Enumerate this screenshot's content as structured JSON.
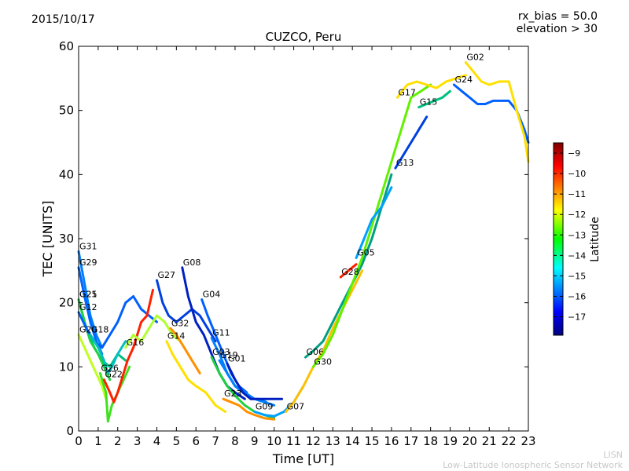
{
  "header": {
    "date": "2015/10/17",
    "bias": "rx_bias = 50.0",
    "elevation": "elevation > 30"
  },
  "footer": {
    "line1": "LISN",
    "line2": "Low-Latitude Ionospheric Sensor Network"
  },
  "chart_data": {
    "type": "scatter",
    "title": "CUZCO, Peru",
    "xlabel": "Time [UT]",
    "ylabel": "TEC [UNITS]",
    "xlim": [
      0,
      23
    ],
    "ylim": [
      0,
      60
    ],
    "xticks": [
      0,
      1,
      2,
      3,
      4,
      5,
      6,
      7,
      8,
      9,
      10,
      11,
      12,
      13,
      14,
      15,
      16,
      17,
      18,
      19,
      20,
      21,
      22,
      23
    ],
    "yticks": [
      0,
      10,
      20,
      30,
      40,
      50,
      60
    ],
    "grid": false,
    "colorbar": {
      "label": "Latitude",
      "range": [
        -17.9,
        -8.5
      ],
      "ticks": [
        -17,
        -16,
        -15,
        -14,
        -13,
        -12,
        -11,
        -10,
        -9
      ],
      "colormap": "jet"
    },
    "series": [
      {
        "name": "G31",
        "color": "#0080ff",
        "points": [
          [
            0.0,
            28
          ],
          [
            0.3,
            23
          ],
          [
            0.6,
            18
          ],
          [
            0.9,
            15
          ],
          [
            1.2,
            13
          ]
        ]
      },
      {
        "name": "G29",
        "color": "#0066ff",
        "points": [
          [
            0.0,
            25.5
          ],
          [
            0.3,
            21
          ],
          [
            0.6,
            17
          ],
          [
            0.9,
            14
          ],
          [
            1.2,
            12
          ]
        ]
      },
      {
        "name": "G25",
        "color": "#00c080",
        "points": [
          [
            0.0,
            20.5
          ],
          [
            0.4,
            16
          ],
          [
            0.8,
            13
          ],
          [
            1.2,
            11
          ],
          [
            1.6,
            10
          ],
          [
            2.0,
            12
          ],
          [
            2.4,
            11
          ]
        ]
      },
      {
        "name": "G21",
        "color": "#20d040",
        "points": [
          [
            0.0,
            20.5
          ],
          [
            0.3,
            17
          ],
          [
            0.6,
            14
          ],
          [
            1.0,
            12
          ],
          [
            1.3,
            10
          ],
          [
            1.6,
            8
          ]
        ]
      },
      {
        "name": "G12",
        "color": "#0060ff",
        "points": [
          [
            0.0,
            18.5
          ],
          [
            0.4,
            16
          ],
          [
            0.8,
            14
          ],
          [
            1.2,
            13
          ],
          [
            1.6,
            15
          ],
          [
            2.0,
            17
          ],
          [
            2.4,
            20
          ],
          [
            2.8,
            21
          ],
          [
            3.2,
            19
          ],
          [
            3.6,
            18
          ],
          [
            4.0,
            17
          ]
        ]
      },
      {
        "name": "G20",
        "color": "#c0ff20",
        "points": [
          [
            0.0,
            15
          ],
          [
            0.3,
            13
          ],
          [
            0.6,
            11
          ],
          [
            0.9,
            9
          ],
          [
            1.2,
            7
          ],
          [
            1.4,
            5
          ]
        ]
      },
      {
        "name": "G18",
        "color": "#00c0c0",
        "points": [
          [
            0.6,
            15
          ],
          [
            1.0,
            13
          ],
          [
            1.3,
            11
          ],
          [
            1.5,
            9
          ],
          [
            1.7,
            10
          ],
          [
            2.0,
            12
          ],
          [
            2.4,
            14
          ]
        ]
      },
      {
        "name": "G26",
        "color": "#40e020",
        "points": [
          [
            1.1,
            9
          ],
          [
            1.4,
            6
          ],
          [
            1.5,
            1.5
          ],
          [
            1.7,
            4
          ],
          [
            2.0,
            6
          ],
          [
            2.3,
            8
          ],
          [
            2.6,
            10
          ]
        ]
      },
      {
        "name": "G22",
        "color": "#ff2000",
        "points": [
          [
            1.3,
            8
          ],
          [
            1.6,
            6
          ],
          [
            1.8,
            4.5
          ],
          [
            2.0,
            6
          ],
          [
            2.2,
            8
          ],
          [
            2.5,
            11
          ],
          [
            2.8,
            13
          ],
          [
            3.2,
            17
          ],
          [
            3.5,
            18
          ],
          [
            3.8,
            22
          ]
        ]
      },
      {
        "name": "G16",
        "color": "#b0ff30",
        "points": [
          [
            2.4,
            13
          ],
          [
            2.8,
            15
          ],
          [
            3.2,
            14
          ],
          [
            3.6,
            16
          ],
          [
            4.0,
            18
          ],
          [
            4.4,
            17
          ],
          [
            4.8,
            15
          ],
          [
            5.2,
            14
          ]
        ]
      },
      {
        "name": "G27",
        "color": "#0040e0",
        "points": [
          [
            4.0,
            23.5
          ],
          [
            4.3,
            20
          ],
          [
            4.6,
            18
          ],
          [
            5.0,
            17
          ],
          [
            5.4,
            18
          ],
          [
            5.8,
            19
          ],
          [
            6.2,
            18
          ],
          [
            6.6,
            16
          ],
          [
            7.0,
            14
          ]
        ]
      },
      {
        "name": "G08",
        "color": "#0020c0",
        "points": [
          [
            5.3,
            25.5
          ],
          [
            5.6,
            21
          ],
          [
            6.0,
            17
          ],
          [
            6.4,
            15
          ],
          [
            6.8,
            12
          ],
          [
            7.2,
            9
          ],
          [
            7.6,
            7
          ],
          [
            8.0,
            6
          ],
          [
            8.5,
            5
          ]
        ]
      },
      {
        "name": "G32",
        "color": "#ff9000",
        "points": [
          [
            4.7,
            16
          ],
          [
            5.0,
            15
          ],
          [
            5.4,
            13
          ],
          [
            5.8,
            11
          ],
          [
            6.2,
            9
          ]
        ]
      },
      {
        "name": "G14",
        "color": "#ffe000",
        "points": [
          [
            4.5,
            14
          ],
          [
            4.8,
            12
          ],
          [
            5.2,
            10
          ],
          [
            5.6,
            8
          ],
          [
            6.0,
            7
          ],
          [
            6.5,
            6
          ],
          [
            7.0,
            4
          ],
          [
            7.5,
            3
          ]
        ]
      },
      {
        "name": "G04",
        "color": "#0060ff",
        "points": [
          [
            6.3,
            20.5
          ],
          [
            6.6,
            18
          ],
          [
            7.0,
            15
          ],
          [
            7.4,
            12
          ],
          [
            7.8,
            9
          ],
          [
            8.2,
            7
          ],
          [
            8.6,
            6
          ]
        ]
      },
      {
        "name": "G11",
        "color": "#0080ff",
        "points": [
          [
            6.8,
            14.5
          ],
          [
            7.2,
            12
          ],
          [
            7.6,
            9
          ],
          [
            8.0,
            7
          ],
          [
            8.5,
            6
          ],
          [
            9.0,
            5
          ],
          [
            9.5,
            4.5
          ],
          [
            10.0,
            4
          ]
        ]
      },
      {
        "name": "G03",
        "color": "#20d040",
        "points": [
          [
            6.8,
            11.5
          ],
          [
            7.2,
            9
          ],
          [
            7.6,
            7
          ],
          [
            8.0,
            5.5
          ],
          [
            8.5,
            4
          ],
          [
            9.0,
            3
          ],
          [
            9.5,
            2.5
          ],
          [
            10.0,
            2
          ]
        ]
      },
      {
        "name": "G19",
        "color": "#0080ff",
        "points": [
          [
            7.2,
            11
          ],
          [
            7.6,
            9
          ],
          [
            8.0,
            7
          ],
          [
            8.4,
            6
          ],
          [
            8.8,
            5
          ],
          [
            9.2,
            5
          ],
          [
            9.6,
            4.5
          ]
        ]
      },
      {
        "name": "G01",
        "color": "#0020c0",
        "points": [
          [
            7.6,
            10.5
          ],
          [
            8.0,
            8
          ],
          [
            8.4,
            6
          ],
          [
            8.8,
            5
          ],
          [
            9.2,
            5
          ],
          [
            9.6,
            5
          ],
          [
            10.0,
            5
          ],
          [
            10.4,
            5
          ]
        ]
      },
      {
        "name": "G23",
        "color": "#ff9000",
        "points": [
          [
            7.4,
            5
          ],
          [
            7.8,
            4.5
          ],
          [
            8.2,
            4
          ],
          [
            8.6,
            3
          ],
          [
            9.0,
            2.5
          ],
          [
            9.5,
            2
          ],
          [
            10.0,
            1.8
          ]
        ]
      },
      {
        "name": "G09",
        "color": "#00a0ff",
        "points": [
          [
            9.0,
            3
          ],
          [
            9.5,
            2.5
          ],
          [
            10.0,
            2.3
          ],
          [
            10.5,
            3
          ],
          [
            11.0,
            4.5
          ],
          [
            11.5,
            7
          ]
        ]
      },
      {
        "name": "G07",
        "color": "#ffc000",
        "points": [
          [
            10.6,
            3
          ],
          [
            11.0,
            4.5
          ],
          [
            11.5,
            7
          ],
          [
            12.0,
            10
          ],
          [
            12.5,
            12.5
          ],
          [
            13.0,
            16
          ],
          [
            13.5,
            19
          ],
          [
            14.0,
            22
          ],
          [
            14.5,
            25
          ]
        ]
      },
      {
        "name": "G06",
        "color": "#00a080",
        "points": [
          [
            11.6,
            11.5
          ],
          [
            12.0,
            12.5
          ],
          [
            12.5,
            14
          ],
          [
            13.0,
            17
          ],
          [
            13.5,
            20
          ],
          [
            14.0,
            23
          ],
          [
            14.5,
            26
          ],
          [
            15.0,
            30
          ],
          [
            15.5,
            35
          ],
          [
            16.0,
            40
          ]
        ]
      },
      {
        "name": "G30",
        "color": "#60f000",
        "points": [
          [
            12.0,
            10
          ],
          [
            12.5,
            12
          ],
          [
            13.0,
            15
          ],
          [
            13.5,
            19
          ],
          [
            14.0,
            23
          ],
          [
            14.5,
            27
          ],
          [
            15.0,
            32
          ],
          [
            15.5,
            37
          ],
          [
            16.0,
            42
          ],
          [
            16.5,
            47
          ],
          [
            17.0,
            52
          ],
          [
            17.5,
            53
          ],
          [
            18.0,
            54
          ]
        ]
      },
      {
        "name": "G28",
        "color": "#ff2000",
        "points": [
          [
            13.4,
            24
          ],
          [
            13.8,
            25
          ],
          [
            14.2,
            26
          ]
        ]
      },
      {
        "name": "G05",
        "color": "#00a0ff",
        "points": [
          [
            14.2,
            27
          ],
          [
            14.6,
            30
          ],
          [
            15.0,
            33
          ],
          [
            15.5,
            35
          ],
          [
            16.0,
            38
          ]
        ]
      },
      {
        "name": "G13",
        "color": "#0040e0",
        "points": [
          [
            16.2,
            41
          ],
          [
            16.6,
            43
          ],
          [
            17.0,
            45
          ],
          [
            17.4,
            47
          ],
          [
            17.8,
            49
          ]
        ]
      },
      {
        "name": "G15",
        "color": "#00c080",
        "points": [
          [
            17.4,
            50.5
          ],
          [
            17.8,
            51
          ],
          [
            18.2,
            51.5
          ],
          [
            18.6,
            52
          ],
          [
            19.0,
            53
          ]
        ]
      },
      {
        "name": "G17",
        "color": "#ffe000",
        "points": [
          [
            16.3,
            52
          ],
          [
            16.8,
            54
          ],
          [
            17.3,
            54.5
          ],
          [
            17.8,
            54
          ],
          [
            18.3,
            53.5
          ],
          [
            18.8,
            54.5
          ],
          [
            19.3,
            55
          ],
          [
            19.8,
            55.5
          ]
        ]
      },
      {
        "name": "G24",
        "color": "#0060ff",
        "points": [
          [
            19.2,
            54
          ],
          [
            19.6,
            53
          ],
          [
            20.0,
            52
          ],
          [
            20.4,
            51
          ],
          [
            20.8,
            51
          ],
          [
            21.2,
            51.5
          ],
          [
            21.6,
            51.5
          ],
          [
            22.0,
            51.5
          ],
          [
            22.4,
            50
          ],
          [
            22.8,
            47
          ],
          [
            23.0,
            45
          ]
        ]
      },
      {
        "name": "G02",
        "color": "#ffe000",
        "points": [
          [
            19.8,
            57.5
          ],
          [
            20.2,
            56
          ],
          [
            20.6,
            54.5
          ],
          [
            21.0,
            54
          ],
          [
            21.5,
            54.5
          ],
          [
            22.0,
            54.5
          ],
          [
            22.4,
            50
          ],
          [
            22.8,
            46
          ],
          [
            23.0,
            42
          ]
        ]
      }
    ]
  }
}
